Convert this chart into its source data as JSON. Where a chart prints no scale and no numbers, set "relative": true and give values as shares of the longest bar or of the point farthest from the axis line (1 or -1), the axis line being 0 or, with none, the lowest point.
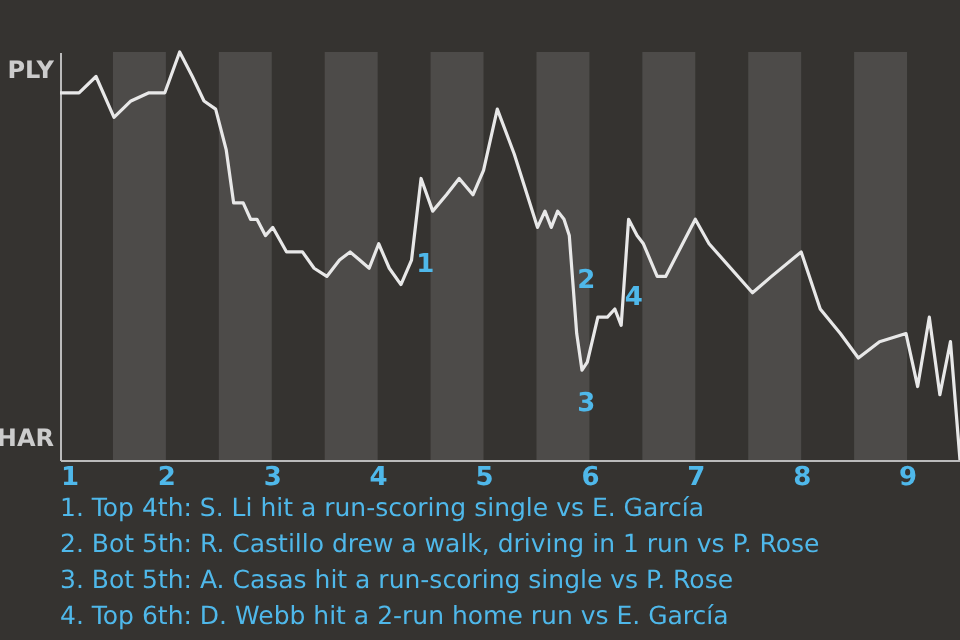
{
  "chart_data": {
    "type": "line",
    "x": [
      1,
      1.18,
      1.34,
      1.51,
      1.67,
      1.84,
      1.99,
      2.13,
      2.25,
      2.36,
      2.47,
      2.57,
      2.64,
      2.73,
      2.8,
      2.86,
      2.94,
      3.01,
      3.14,
      3.29,
      3.4,
      3.52,
      3.64,
      3.74,
      3.83,
      3.92,
      4.01,
      4.11,
      4.22,
      4.32,
      4.41,
      4.52,
      4.65,
      4.77,
      4.9,
      5,
      5.13,
      5.29,
      5.51,
      5.58,
      5.64,
      5.7,
      5.76,
      5.81,
      5.88,
      5.93,
      5.98,
      6.08,
      6.17,
      6.24,
      6.3,
      6.37,
      6.45,
      6.51,
      6.64,
      6.72,
      7,
      7.13,
      7.54,
      7.72,
      8,
      8.18,
      8.37,
      8.54,
      8.74,
      8.99,
      9.1,
      9.21,
      9.31,
      9.41,
      9.5
    ],
    "values": [
      0.9,
      0.9,
      0.94,
      0.84,
      0.88,
      0.9,
      0.9,
      1,
      0.94,
      0.88,
      0.86,
      0.76,
      0.63,
      0.63,
      0.59,
      0.59,
      0.55,
      0.57,
      0.51,
      0.51,
      0.47,
      0.45,
      0.49,
      0.51,
      0.49,
      0.47,
      0.53,
      0.47,
      0.43,
      0.49,
      0.69,
      0.61,
      0.65,
      0.69,
      0.65,
      0.71,
      0.86,
      0.75,
      0.57,
      0.61,
      0.57,
      0.61,
      0.59,
      0.55,
      0.31,
      0.22,
      0.24,
      0.35,
      0.35,
      0.37,
      0.33,
      0.59,
      0.55,
      0.53,
      0.45,
      0.45,
      0.59,
      0.53,
      0.41,
      0.45,
      0.51,
      0.37,
      0.31,
      0.25,
      0.29,
      0.31,
      0.18,
      0.35,
      0.16,
      0.29,
      0
    ],
    "relative": true,
    "color": "#e8e8e8",
    "xlim": [
      1,
      9.5
    ],
    "xticks": [
      1,
      2,
      3,
      4,
      5,
      6,
      7,
      8,
      9
    ],
    "bands": [
      {
        "axis": "x",
        "from": 1.5,
        "to": 2,
        "color": "#4d4b49"
      },
      {
        "axis": "x",
        "from": 2.5,
        "to": 3,
        "color": "#4d4b49"
      },
      {
        "axis": "x",
        "from": 3.5,
        "to": 4,
        "color": "#4d4b49"
      },
      {
        "axis": "x",
        "from": 4.5,
        "to": 5,
        "color": "#4d4b49"
      },
      {
        "axis": "x",
        "from": 5.5,
        "to": 6,
        "color": "#4d4b49"
      },
      {
        "axis": "x",
        "from": 6.5,
        "to": 7,
        "color": "#4d4b49"
      },
      {
        "axis": "x",
        "from": 7.5,
        "to": 8,
        "color": "#4d4b49"
      },
      {
        "axis": "x",
        "from": 8.5,
        "to": 9,
        "color": "#4d4b49"
      }
    ],
    "annotations": [
      {
        "text": "PLY"
      },
      {
        "text": "HAR"
      },
      {
        "text": "1",
        "x": 4.45,
        "y": 0.48
      },
      {
        "text": "2",
        "x": 5.97,
        "y": 0.44
      },
      {
        "text": "3",
        "x": 5.97,
        "y": 0.14
      },
      {
        "text": "4",
        "x": 6.42,
        "y": 0.4
      },
      "1. Top 4th: S. Li hit a run-scoring single vs E. García",
      "2. Bot 5th: R. Castillo drew a walk, driving in 1 run vs P. Rose",
      "3. Bot 5th: A. Casas hit a run-scoring single vs P. Rose",
      "4. Top 6th: D. Webb hit a 2-run home run vs E. García"
    ]
  }
}
